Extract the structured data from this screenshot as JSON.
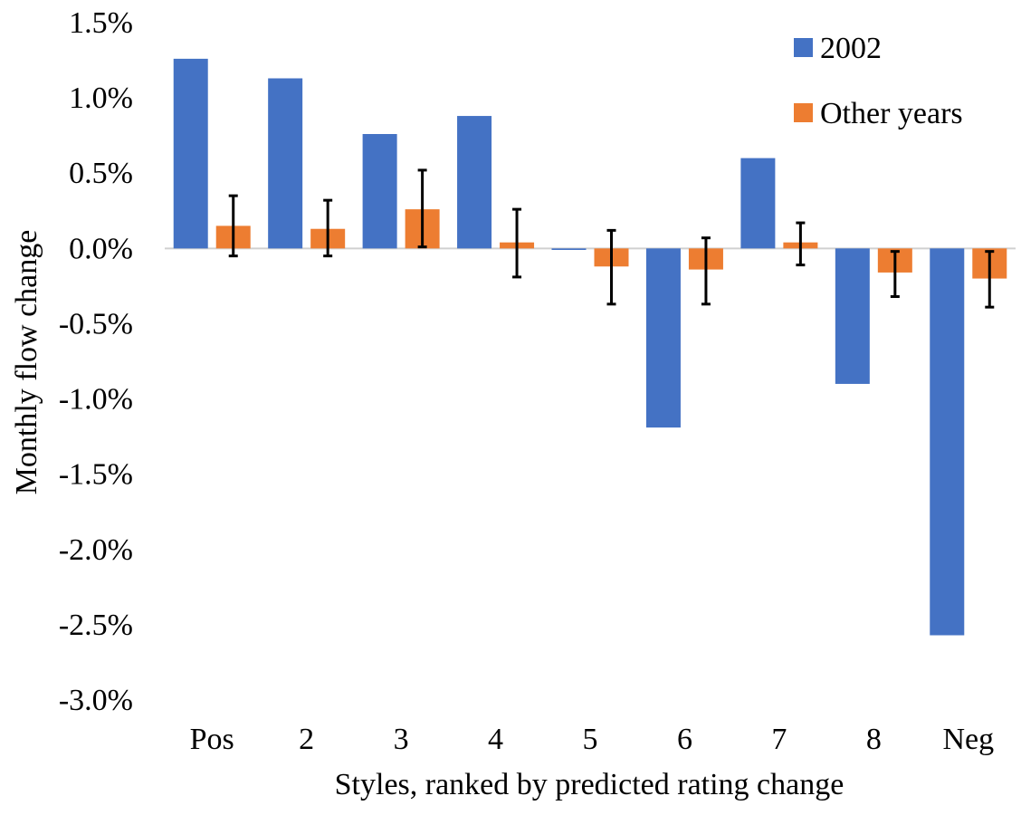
{
  "chart_data": {
    "type": "bar",
    "xlabel": "Styles, ranked by predicted rating change",
    "ylabel": "Monthly flow change",
    "ylim": [
      -3.0,
      1.5
    ],
    "yticks": [
      "1.5%",
      "1.0%",
      "0.5%",
      "0.0%",
      "-0.5%",
      "-1.0%",
      "-1.5%",
      "-2.0%",
      "-2.5%",
      "-3.0%"
    ],
    "ytick_values": [
      1.5,
      1.0,
      0.5,
      0.0,
      -0.5,
      -1.0,
      -1.5,
      -2.0,
      -2.5,
      -3.0
    ],
    "categories": [
      "Pos",
      "2",
      "3",
      "4",
      "5",
      "6",
      "7",
      "8",
      "Neg"
    ],
    "series": [
      {
        "name": "2002",
        "color": "#4472C4",
        "values": [
          1.26,
          1.13,
          0.76,
          0.88,
          -0.01,
          -1.19,
          0.6,
          -0.9,
          -2.57
        ]
      },
      {
        "name": "Other years",
        "color": "#ED7D31",
        "values": [
          0.15,
          0.13,
          0.26,
          0.04,
          -0.12,
          -0.14,
          0.04,
          -0.16,
          -0.2
        ],
        "error_low": [
          -0.05,
          -0.05,
          0.01,
          -0.19,
          -0.37,
          -0.37,
          -0.11,
          -0.32,
          -0.39
        ],
        "error_high": [
          0.35,
          0.32,
          0.52,
          0.26,
          0.12,
          0.07,
          0.17,
          -0.02,
          -0.02
        ]
      }
    ],
    "grid": false,
    "legend_position": "top-right",
    "error_bar_color": "#000000"
  }
}
